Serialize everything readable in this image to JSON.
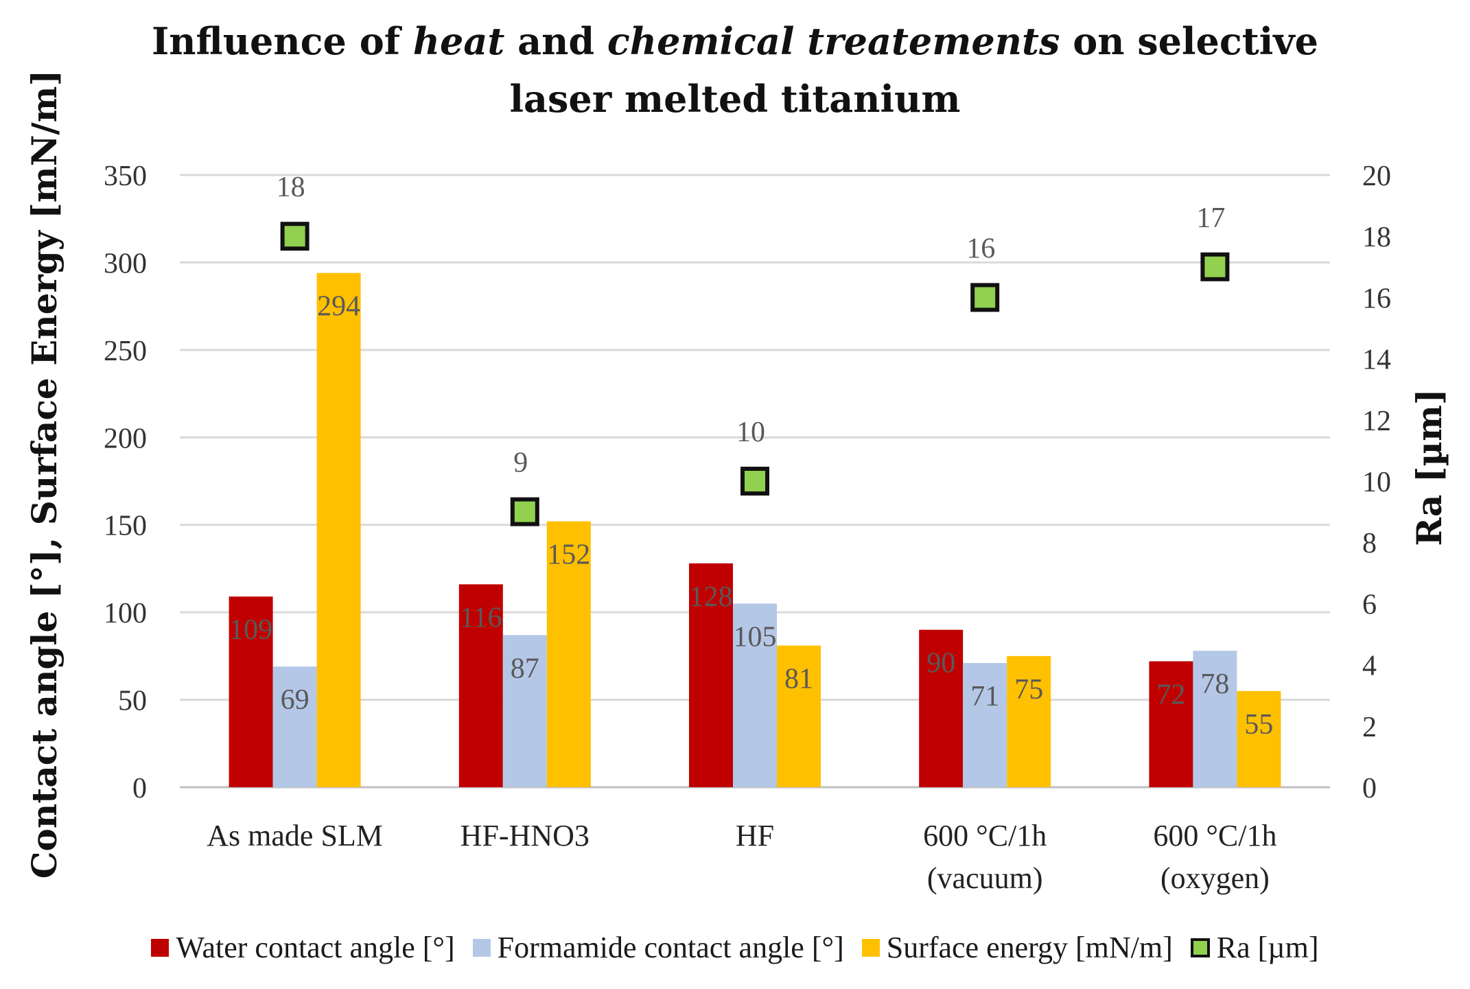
{
  "title": {
    "line1_a": "Influence of ",
    "line1_b": "heat",
    "line1_c": " and ",
    "line1_d": "chemical treatements",
    "line1_e": " on selective",
    "line2": "laser melted titanium"
  },
  "chart_data": {
    "type": "bar",
    "title": "Influence of heat and chemical treatements on selective laser melted titanium",
    "categories": [
      [
        "As made SLM"
      ],
      [
        "HF-HNO3"
      ],
      [
        "HF"
      ],
      [
        "600 °C/1h",
        "(vacuum)"
      ],
      [
        "600 °C/1h",
        "(oxygen)"
      ]
    ],
    "series": [
      {
        "name": "Water contact angle [°]",
        "axis": "left",
        "color": "#c00000",
        "label_color": "#595959",
        "values": [
          109,
          116,
          128,
          90,
          72
        ]
      },
      {
        "name": "Formamide contact angle [°]",
        "axis": "left",
        "color": "#b4c7e7",
        "label_color": "#595959",
        "values": [
          69,
          87,
          105,
          71,
          78
        ]
      },
      {
        "name": "Surface energy [mN/m]",
        "axis": "left",
        "color": "#ffc000",
        "label_color": "#595959",
        "values": [
          294,
          152,
          81,
          75,
          55
        ]
      }
    ],
    "scatter_series": {
      "name": "Ra [µm]",
      "axis": "right",
      "type": "scatter",
      "fill": "#92d050",
      "stroke": "#111111",
      "label_color": "#595959",
      "values": [
        18,
        9,
        10,
        16,
        17
      ],
      "labels": [
        "18",
        "9",
        "10",
        "16",
        "17"
      ]
    },
    "ylabel": "Contact angle [°], Surface Energy [mN/m]",
    "y2label": "Ra [µm]",
    "ylim": [
      0,
      350
    ],
    "yticks": [
      0,
      50,
      100,
      150,
      200,
      250,
      300,
      350
    ],
    "y2lim": [
      0,
      20
    ],
    "y2ticks": [
      0,
      2,
      4,
      6,
      8,
      10,
      12,
      14,
      16,
      18,
      20
    ],
    "grid": true,
    "gridline_color": "#d9d9d9",
    "legend_position": "bottom"
  }
}
